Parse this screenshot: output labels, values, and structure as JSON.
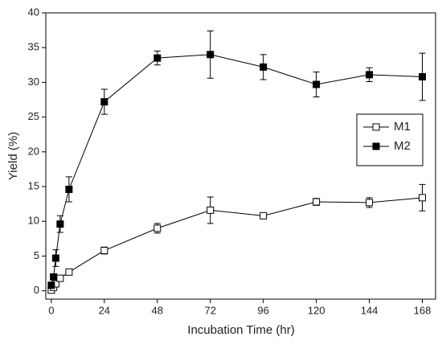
{
  "chart_data": {
    "type": "line",
    "x_label": "Incubation Time (hr)",
    "y_label": "Yield (%)",
    "x": [
      0,
      1,
      2,
      4,
      8,
      24,
      48,
      72,
      96,
      120,
      144,
      168
    ],
    "series": [
      {
        "name": "M1",
        "color": "#000000",
        "filled": false,
        "values": [
          0.1,
          0.5,
          1.0,
          1.8,
          2.7,
          5.8,
          9.0,
          11.6,
          10.8,
          12.8,
          12.7,
          13.4
        ],
        "errors": [
          0.2,
          0.3,
          0.3,
          0.3,
          0.3,
          0.5,
          0.7,
          1.9,
          0.3,
          0.5,
          0.7,
          1.9
        ]
      },
      {
        "name": "M2",
        "color": "#000000",
        "filled": true,
        "values": [
          0.8,
          2.0,
          4.7,
          9.6,
          14.6,
          27.2,
          33.5,
          34.0,
          32.2,
          29.7,
          31.1,
          30.8
        ],
        "errors": [
          0.3,
          0.3,
          1.2,
          1.2,
          1.8,
          1.8,
          1.0,
          3.4,
          1.8,
          1.8,
          1.0,
          3.4
        ]
      }
    ],
    "xlim": [
      -2.5,
      174
    ],
    "ylim": [
      -1.2,
      40
    ],
    "xticks": [
      0,
      24,
      48,
      72,
      96,
      120,
      144,
      168
    ],
    "yticks": [
      0,
      5,
      10,
      15,
      20,
      25,
      30,
      35,
      40
    ],
    "legend": "center right",
    "grid": false
  }
}
